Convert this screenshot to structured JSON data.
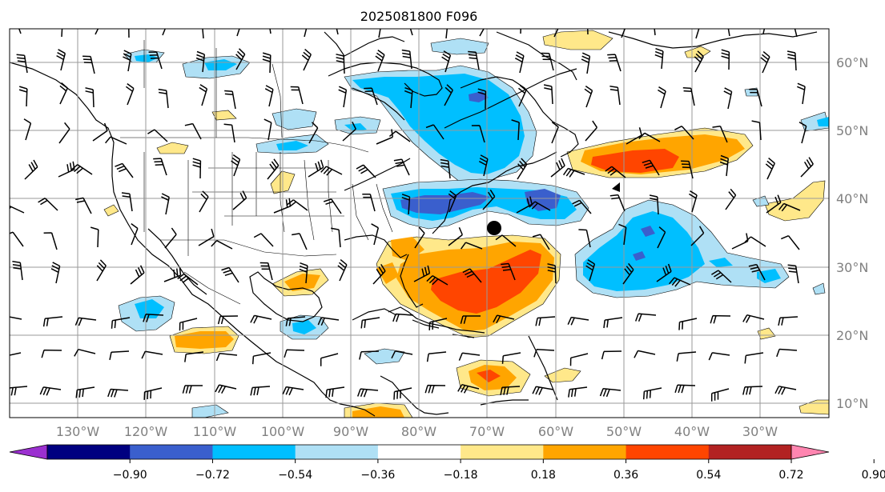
{
  "title": "2025081800 F096",
  "lat_labels": [
    "60°N",
    "50°N",
    "40°N",
    "30°N",
    "20°N",
    "10°N"
  ],
  "lon_labels": [
    "130°W",
    "120°W",
    "110°W",
    "100°W",
    "90°W",
    "80°W",
    "70°W",
    "60°W",
    "50°W",
    "40°W",
    "30°W"
  ],
  "colorbar": {
    "ticks": [
      "−0.90",
      "−0.72",
      "−0.54",
      "−0.36",
      "−0.18",
      "0.18",
      "0.36",
      "0.54",
      "0.72",
      "0.90"
    ],
    "colors": [
      "#9b30d0",
      "#000080",
      "#3a5fcd",
      "#00bfff",
      "#afe0f5",
      "#ffffff",
      "#ffe88a",
      "#ffa500",
      "#ff4500",
      "#b22222",
      "#ff85b0"
    ]
  },
  "marker": {
    "label": "storm-center",
    "lon": -69.2,
    "lat": 35.8
  }
}
